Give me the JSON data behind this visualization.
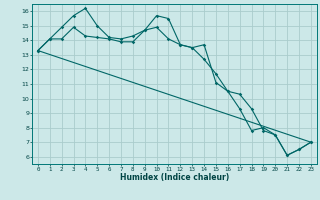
{
  "xlabel": "Humidex (Indice chaleur)",
  "bg_color": "#cce8e8",
  "grid_color": "#aacccc",
  "line_color": "#006666",
  "xlim": [
    -0.5,
    23.5
  ],
  "ylim": [
    5.5,
    16.5
  ],
  "xticks": [
    0,
    1,
    2,
    3,
    4,
    5,
    6,
    7,
    8,
    9,
    10,
    11,
    12,
    13,
    14,
    15,
    16,
    17,
    18,
    19,
    20,
    21,
    22,
    23
  ],
  "yticks": [
    6,
    7,
    8,
    9,
    10,
    11,
    12,
    13,
    14,
    15,
    16
  ],
  "series1": {
    "x": [
      0,
      1,
      2,
      3,
      4,
      5,
      6,
      7,
      8,
      9,
      10,
      11,
      12,
      13,
      14,
      15,
      16,
      17,
      18,
      19,
      20,
      21,
      22,
      23
    ],
    "y": [
      13.3,
      14.1,
      14.1,
      14.9,
      14.3,
      14.2,
      14.1,
      13.9,
      13.9,
      14.7,
      14.9,
      14.1,
      13.7,
      13.5,
      13.7,
      11.1,
      10.5,
      10.3,
      9.3,
      7.8,
      7.5,
      6.1,
      6.5,
      7.0
    ]
  },
  "series2": {
    "x": [
      0,
      1,
      2,
      3,
      4,
      5,
      6,
      7,
      8,
      9,
      10,
      11,
      12,
      13,
      14,
      15,
      16,
      17,
      18,
      19,
      20,
      21,
      22,
      23
    ],
    "y": [
      13.3,
      14.1,
      14.9,
      15.7,
      16.2,
      15.0,
      14.2,
      14.1,
      14.3,
      14.7,
      15.7,
      15.5,
      13.7,
      13.5,
      12.7,
      11.7,
      10.5,
      9.3,
      7.8,
      8.0,
      7.5,
      6.1,
      6.5,
      7.0
    ]
  },
  "series3": {
    "x": [
      0,
      23
    ],
    "y": [
      13.3,
      7.0
    ]
  }
}
